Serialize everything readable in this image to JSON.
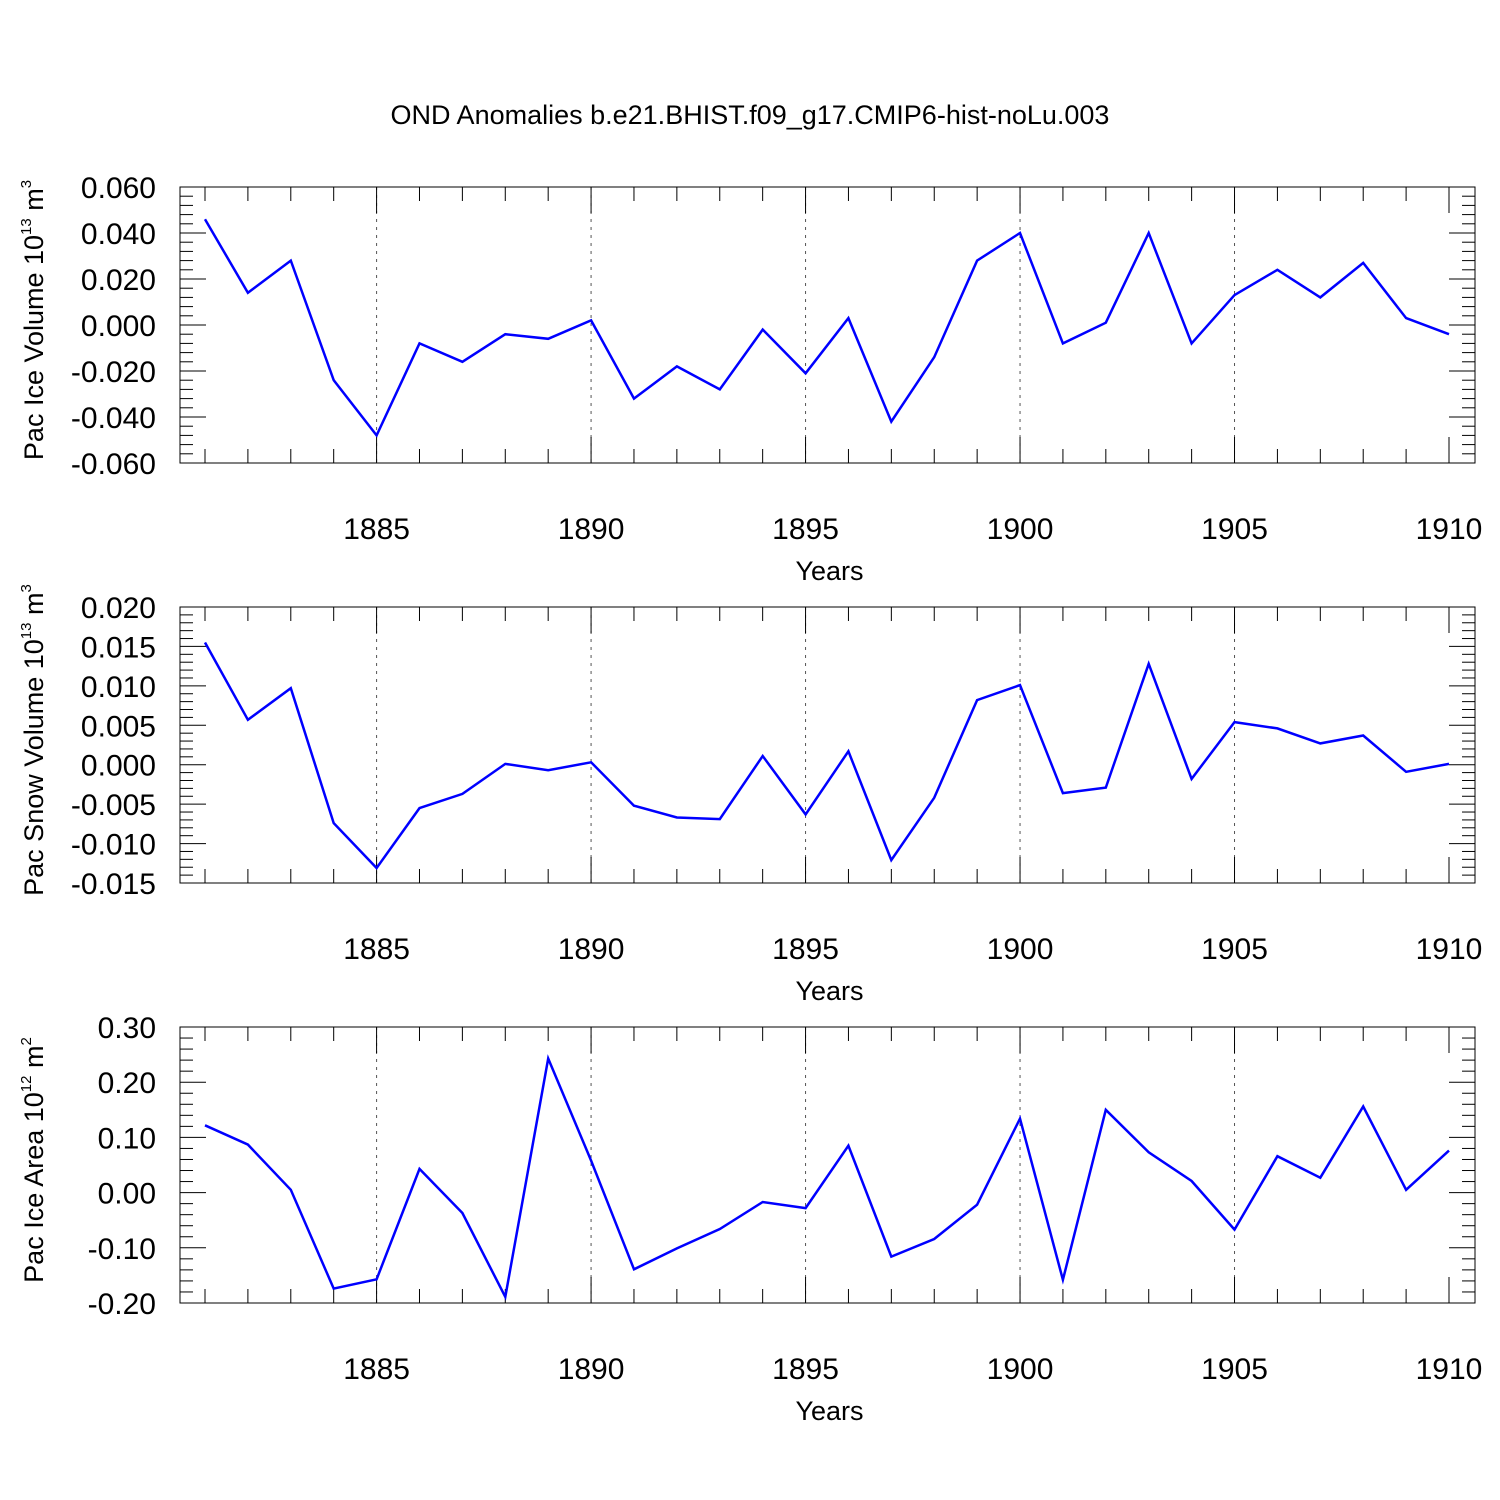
{
  "title": "OND Anomalies b.e21.BHIST.f09_g17.CMIP6-hist-noLu.003",
  "line_color": "#0000ff",
  "chart_data": [
    {
      "type": "line",
      "title": "OND Anomalies b.e21.BHIST.f09_g17.CMIP6-hist-noLu.003",
      "xlabel": "Years",
      "ylabel": "Pac Ice Volume 10",
      "ylabel_exp": "13",
      "ylabel_unit": " m",
      "ylabel_unit_exp": "3",
      "xlim": [
        1881,
        1910
      ],
      "ylim": [
        -0.06,
        0.06
      ],
      "xticks": [
        "1885",
        "1890",
        "1895",
        "1900",
        "1905",
        "1910"
      ],
      "yticks": [
        "0.060",
        "0.040",
        "0.020",
        "0.000",
        "-0.020",
        "-0.040",
        "-0.060"
      ],
      "x": [
        1881,
        1882,
        1883,
        1884,
        1885,
        1886,
        1887,
        1888,
        1889,
        1890,
        1891,
        1892,
        1893,
        1894,
        1895,
        1896,
        1897,
        1898,
        1899,
        1900,
        1901,
        1902,
        1903,
        1904,
        1905,
        1906,
        1907,
        1908,
        1909,
        1910
      ],
      "values": [
        0.046,
        0.014,
        0.028,
        -0.024,
        -0.048,
        -0.008,
        -0.016,
        -0.004,
        -0.006,
        0.002,
        -0.032,
        -0.018,
        -0.028,
        -0.002,
        -0.021,
        0.003,
        -0.042,
        -0.014,
        0.028,
        0.04,
        -0.008,
        0.001,
        0.04,
        -0.008,
        0.013,
        0.024,
        0.012,
        0.027,
        0.003,
        -0.004
      ]
    },
    {
      "type": "line",
      "xlabel": "Years",
      "ylabel": "Pac Snow Volume 10",
      "ylabel_exp": "13",
      "ylabel_unit": " m",
      "ylabel_unit_exp": "3",
      "xlim": [
        1881,
        1910
      ],
      "ylim": [
        -0.015,
        0.02
      ],
      "xticks": [
        "1885",
        "1890",
        "1895",
        "1900",
        "1905",
        "1910"
      ],
      "yticks": [
        "0.020",
        "0.015",
        "0.010",
        "0.005",
        "0.000",
        "-0.005",
        "-0.010",
        "-0.015"
      ],
      "x": [
        1881,
        1882,
        1883,
        1884,
        1885,
        1886,
        1887,
        1888,
        1889,
        1890,
        1891,
        1892,
        1893,
        1894,
        1895,
        1896,
        1897,
        1898,
        1899,
        1900,
        1901,
        1902,
        1903,
        1904,
        1905,
        1906,
        1907,
        1908,
        1909,
        1910
      ],
      "values": [
        0.0155,
        0.0057,
        0.0097,
        -0.0074,
        -0.0131,
        -0.0055,
        -0.0037,
        0.0001,
        -0.0007,
        0.0003,
        -0.0052,
        -0.0067,
        -0.0069,
        0.0011,
        -0.0063,
        0.0017,
        -0.0121,
        -0.0042,
        0.0082,
        0.0101,
        -0.0036,
        -0.0029,
        0.0128,
        -0.0018,
        0.0054,
        0.0046,
        0.0027,
        0.0037,
        -0.0009,
        0.0001
      ]
    },
    {
      "type": "line",
      "xlabel": "Years",
      "ylabel": "Pac Ice Area 10",
      "ylabel_exp": "12",
      "ylabel_unit": " m",
      "ylabel_unit_exp": "2",
      "xlim": [
        1881,
        1910
      ],
      "ylim": [
        -0.2,
        0.3
      ],
      "xticks": [
        "1885",
        "1890",
        "1895",
        "1900",
        "1905",
        "1910"
      ],
      "yticks": [
        "0.30",
        "0.20",
        "0.10",
        "0.00",
        "-0.10",
        "-0.20"
      ],
      "x": [
        1881,
        1882,
        1883,
        1884,
        1885,
        1886,
        1887,
        1888,
        1889,
        1890,
        1891,
        1892,
        1893,
        1894,
        1895,
        1896,
        1897,
        1898,
        1899,
        1900,
        1901,
        1902,
        1903,
        1904,
        1905,
        1906,
        1907,
        1908,
        1909,
        1910
      ],
      "values": [
        0.122,
        0.087,
        0.005,
        -0.174,
        -0.157,
        0.043,
        -0.037,
        -0.189,
        0.243,
        0.058,
        -0.139,
        -0.101,
        -0.066,
        -0.017,
        -0.028,
        0.085,
        -0.116,
        -0.084,
        -0.022,
        0.134,
        -0.158,
        0.15,
        0.073,
        0.021,
        -0.067,
        0.066,
        0.027,
        0.156,
        0.005,
        0.076
      ]
    }
  ]
}
